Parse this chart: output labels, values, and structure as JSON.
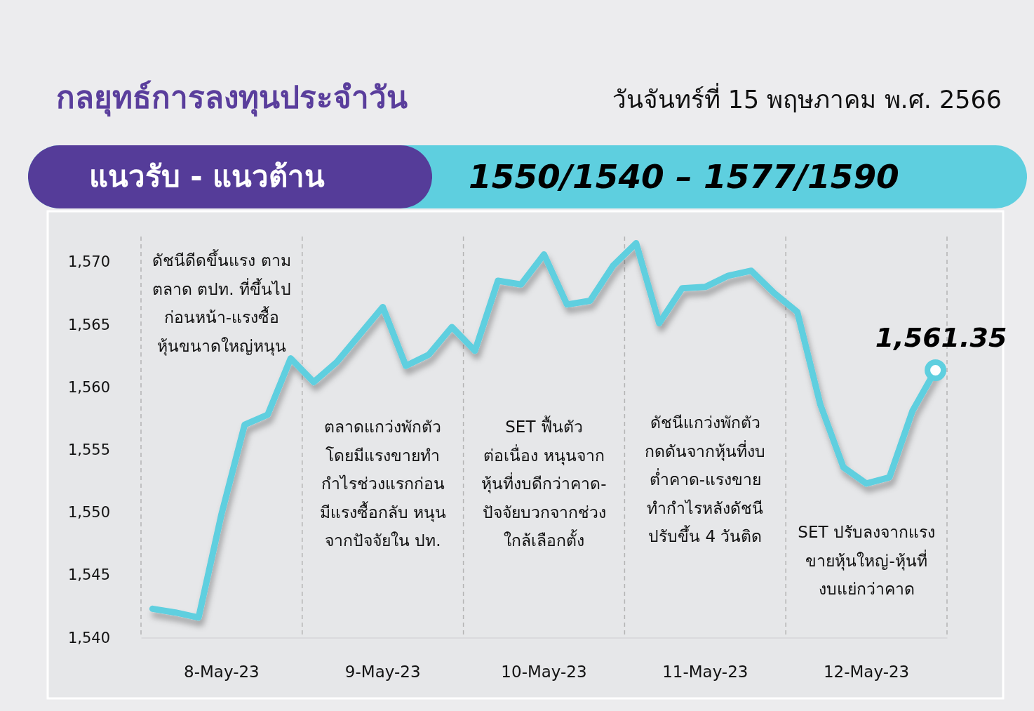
{
  "chart_data": {
    "type": "line",
    "title": "กลยุทธ์การลงทุนประจำวัน",
    "subtitle": "วันจันทร์ที่ 15 พฤษภาคม พ.ศ. 2566",
    "annotations": [
      "แนวรับ - แนวต้าน",
      "1550/1540 – 1577/1590",
      "ดัชนีดีดขึ้นแรง ตาม\nตลาด ตปท. ที่ขึ้นไป\nก่อนหน้า-แรงซื้อ\nหุ้นขนาดใหญ่หนุน",
      "ตลาดแกว่งพักตัว\nโดยมีแรงขายทำ\nกำไรช่วงแรกก่อน\nมีแรงซื้อกลับ หนุน\nจากปัจจัยใน ปท.",
      "SET ฟื้นตัว\nต่อเนื่อง หนุนจาก\nหุ้นที่งบดีกว่าคาด-\nปัจจัยบวกจากช่วง\nใกล้เลือกตั้ง",
      "ดัชนีแกว่งพักตัว\nกดดันจากหุ้นที่งบ\nต่ำคาด-แรงขาย\nทำกำไรหลังดัชนี\nปรับขึ้น 4 วันติด",
      "SET ปรับลงจากแรง\nขายหุ้นใหญ่-หุ้นที่\nงบแย่กว่าคาด"
    ],
    "categories": [
      null,
      null,
      null,
      "8-May-23",
      null,
      null,
      null,
      null,
      null,
      null,
      "9-May-23",
      null,
      null,
      null,
      null,
      null,
      null,
      "10-May-23",
      null,
      null,
      null,
      null,
      null,
      null,
      "11-May-23",
      null,
      null,
      null,
      null,
      null,
      null,
      "12-May-23",
      null,
      null,
      null
    ],
    "ylim": [
      1540,
      1572
    ],
    "yticks": [
      {
        "value": 1540,
        "label": "1,540"
      },
      {
        "value": 1545,
        "label": "1,545"
      },
      {
        "value": 1550,
        "label": "1,550"
      },
      {
        "value": 1555,
        "label": "1,555"
      },
      {
        "value": 1560,
        "label": "1,560"
      },
      {
        "value": 1565,
        "label": "1,565"
      },
      {
        "value": 1570,
        "label": "1,570"
      }
    ],
    "series": [
      {
        "type": "line",
        "color": "#5ecfdf",
        "line_style": "solid",
        "values": [
          1542.3,
          1542.0,
          1541.6,
          1549.9,
          1557.0,
          1557.8,
          1562.3,
          1560.4,
          1562.0,
          1564.2,
          1566.4,
          1561.7,
          1562.6,
          1564.8,
          1562.9,
          1568.5,
          1568.2,
          1570.6,
          1566.6,
          1566.9,
          1569.7,
          1571.5,
          1565.1,
          1567.9,
          1568.0,
          1568.9,
          1569.3,
          1567.5,
          1566.0,
          1558.6,
          1553.6,
          1552.3,
          1552.8,
          1558.1,
          1561.35
        ]
      },
      {
        "type": "scatter",
        "color": "#ffffff",
        "marker": "circle",
        "values": [
          null,
          null,
          null,
          null,
          null,
          null,
          null,
          null,
          null,
          null,
          null,
          null,
          null,
          null,
          null,
          null,
          null,
          null,
          null,
          null,
          null,
          null,
          null,
          null,
          null,
          null,
          null,
          null,
          null,
          null,
          null,
          null,
          null,
          null,
          1561.35
        ],
        "value_labels": [
          null,
          null,
          null,
          null,
          null,
          null,
          null,
          null,
          null,
          null,
          null,
          null,
          null,
          null,
          null,
          null,
          null,
          null,
          null,
          null,
          null,
          null,
          null,
          null,
          null,
          null,
          null,
          null,
          null,
          null,
          null,
          null,
          null,
          null,
          "1,561.35"
        ]
      }
    ],
    "grid": "x"
  }
}
